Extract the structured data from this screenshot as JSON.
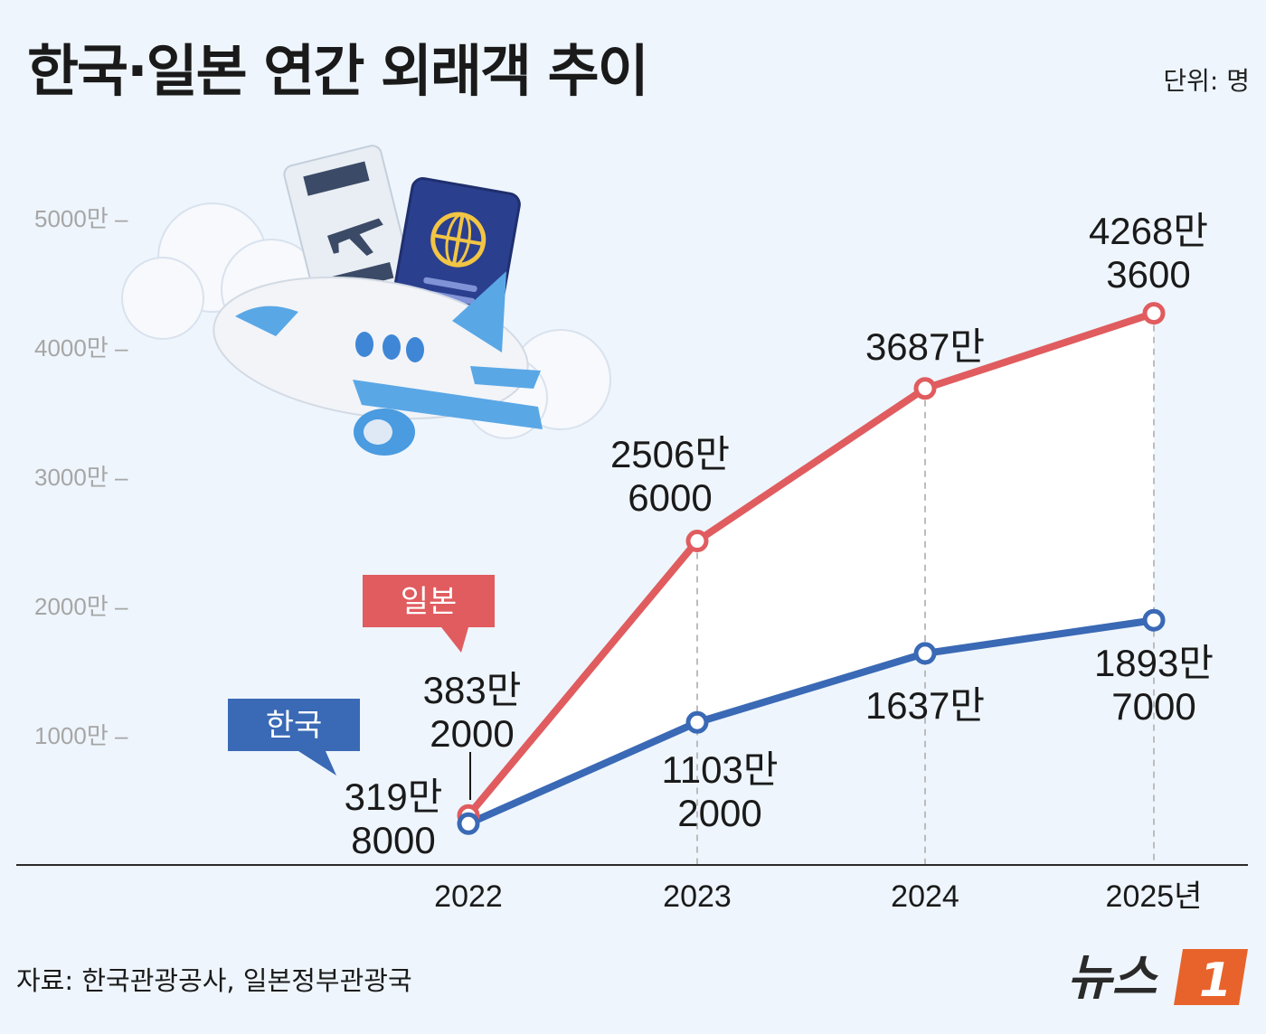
{
  "header": {
    "title": "한국·일본 연간 외래객 추이",
    "unit": "단위: 명"
  },
  "footer": {
    "source": "자료: 한국관광공사, 일본정부관광국",
    "logo_text": "뉴스",
    "logo_mark": "1"
  },
  "colors": {
    "japan": "#e05c5f",
    "korea": "#3a69b5",
    "axis": "#2a2a2a",
    "background": "#eef5fc",
    "fill_between": "#ffffff",
    "logo_orange": "#e8632b"
  },
  "chart_data": {
    "type": "line",
    "title": "한국·일본 연간 외래객 추이",
    "x": [
      "2022",
      "2023",
      "2024",
      "2025년"
    ],
    "ylim": [
      0,
      5000
    ],
    "y_ticks": [
      {
        "value": 1000,
        "label": "1000만 –"
      },
      {
        "value": 2000,
        "label": "2000만 –"
      },
      {
        "value": 3000,
        "label": "3000만 –"
      },
      {
        "value": 4000,
        "label": "4000만 –"
      },
      {
        "value": 5000,
        "label": "5000만 –"
      }
    ],
    "grid": false,
    "area_between_series": true,
    "series": [
      {
        "name": "일본",
        "key": "japan",
        "values": [
          383.2,
          2506.6,
          3687,
          4268.36
        ],
        "labels": [
          [
            "383만",
            "2000"
          ],
          [
            "2506만",
            "6000"
          ],
          [
            "3687만"
          ],
          [
            "4268만",
            "3600"
          ]
        ]
      },
      {
        "name": "한국",
        "key": "korea",
        "values": [
          319.8,
          1103.2,
          1637,
          1893.7
        ],
        "labels": [
          [
            "319만",
            "8000"
          ],
          [
            "1103만",
            "2000"
          ],
          [
            "1637만"
          ],
          [
            "1893만",
            "7000"
          ]
        ]
      }
    ]
  }
}
